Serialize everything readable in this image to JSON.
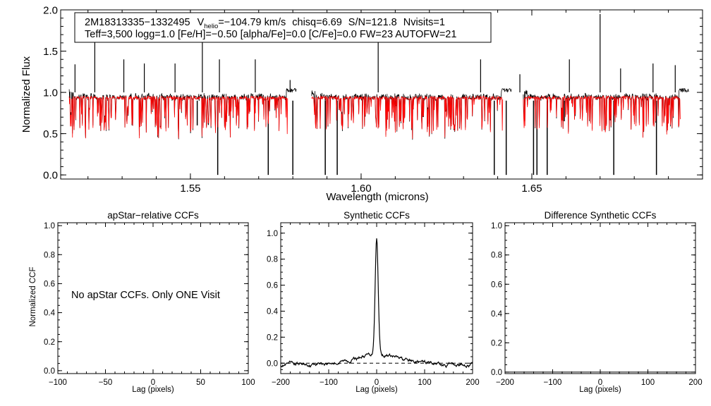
{
  "chart_data": [
    {
      "type": "line",
      "name": "spectrum",
      "header": {
        "star_id": "2M18313335−1332495",
        "v_label": "V",
        "v_sub": "helio",
        "v_value": "=−104.79 km/s",
        "chisq": "chisq=6.69",
        "snr": "S/N=121.8",
        "nvisits": "Nvisits=1",
        "params": "Teff=3,500 logg=1.0 [Fe/H]=−0.50 [alpha/Fe]=0.0 [C/Fe]=0.0 FW=23 AUTOFW=21"
      },
      "xlabel": "Wavelength (microns)",
      "ylabel": "Normalized Flux",
      "xlim": [
        1.512,
        1.7
      ],
      "ylim": [
        -0.05,
        2.0
      ],
      "xticks": [
        "1.55",
        "1.60",
        "1.65"
      ],
      "xtick_values": [
        1.55,
        1.6,
        1.65
      ],
      "yticks": [
        "0.0",
        "0.5",
        "1.0",
        "1.5",
        "2.0"
      ],
      "ytick_values": [
        0.0,
        0.5,
        1.0,
        1.5,
        2.0
      ],
      "detectors": [
        [
          1.5145,
          1.581
        ],
        [
          1.5855,
          1.644
        ],
        [
          1.6475,
          1.696
        ]
      ],
      "observed": {
        "name": "observed",
        "color": "#000000",
        "emission_lines": [
          [
            1.5162,
            1.34
          ],
          [
            1.522,
            1.68
          ],
          [
            1.5305,
            1.4
          ],
          [
            1.5365,
            1.35
          ],
          [
            1.5455,
            1.35
          ],
          [
            1.5535,
            1.63
          ],
          [
            1.5585,
            1.4
          ],
          [
            1.569,
            1.4
          ],
          [
            1.5792,
            1.15
          ],
          [
            1.605,
            1.62
          ],
          [
            1.635,
            1.4
          ],
          [
            1.6465,
            1.22
          ],
          [
            1.661,
            1.4
          ],
          [
            1.67,
            1.95
          ],
          [
            1.676,
            1.29
          ],
          [
            1.6855,
            1.35
          ],
          [
            1.692,
            1.33
          ]
        ],
        "absorption_lines": [
          [
            1.552,
            0.6
          ],
          [
            1.558,
            0.0
          ],
          [
            1.5728,
            0.0
          ],
          [
            1.58,
            0.0
          ],
          [
            1.5895,
            0.0
          ],
          [
            1.593,
            0.0
          ],
          [
            1.61,
            0.65
          ],
          [
            1.639,
            0.0
          ],
          [
            1.6425,
            0.0
          ],
          [
            1.6505,
            0.0
          ],
          [
            1.6515,
            0.0
          ],
          [
            1.6545,
            0.0
          ],
          [
            1.6595,
            0.65
          ],
          [
            1.674,
            0.0
          ],
          [
            1.6865,
            0.0
          ]
        ]
      },
      "model": {
        "name": "synthetic",
        "color": "#ff0000"
      }
    },
    {
      "type": "line",
      "name": "apstar_ccf",
      "title": "apStar−relative CCFs",
      "xlabel": "Lag (pixels)",
      "ylabel": "Normalized CCF",
      "xlim": [
        -100,
        100
      ],
      "ylim": [
        -0.02,
        1.02
      ],
      "xticks": [
        "−100",
        "−50",
        "0",
        "50",
        "100"
      ],
      "xtick_values": [
        -100,
        -50,
        0,
        50,
        100
      ],
      "yticks": [
        "0.0",
        "0.2",
        "0.4",
        "0.6",
        "0.8",
        "1.0"
      ],
      "ytick_values": [
        0.0,
        0.2,
        0.4,
        0.6,
        0.8,
        1.0
      ],
      "annotation": "No apStar CCFs.  Only ONE Visit"
    },
    {
      "type": "line",
      "name": "synthetic_ccf",
      "title": "Synthetic CCFs",
      "xlabel": "Lag (pixels)",
      "xlim": [
        -200,
        200
      ],
      "ylim": [
        -0.08,
        1.08
      ],
      "xticks": [
        "−200",
        "−100",
        "0",
        "100",
        "200"
      ],
      "xtick_values": [
        -200,
        -100,
        0,
        100,
        200
      ],
      "yticks": [
        "0.0",
        "0.2",
        "0.4",
        "0.6",
        "0.8",
        "1.0"
      ],
      "ytick_values": [
        0.0,
        0.2,
        0.4,
        0.6,
        0.8,
        1.0
      ],
      "peak_lag": 0,
      "peak_value": 1.0,
      "baseline": 0.0
    },
    {
      "type": "line",
      "name": "difference_ccf",
      "title": "Difference Synthetic CCFs",
      "xlabel": "Lag (pixels)",
      "xlim": [
        -200,
        200
      ],
      "ylim": [
        -0.01,
        1.02
      ],
      "xticks": [
        "−200",
        "−100",
        "0",
        "100",
        "200"
      ],
      "xtick_values": [
        -200,
        -100,
        0,
        100,
        200
      ],
      "yticks": [
        "0.0",
        "0.2",
        "0.4",
        "0.6",
        "0.8",
        "1.0"
      ],
      "ytick_values": [
        0.0,
        0.2,
        0.4,
        0.6,
        0.8,
        1.0
      ],
      "baseline": 0.0
    }
  ]
}
